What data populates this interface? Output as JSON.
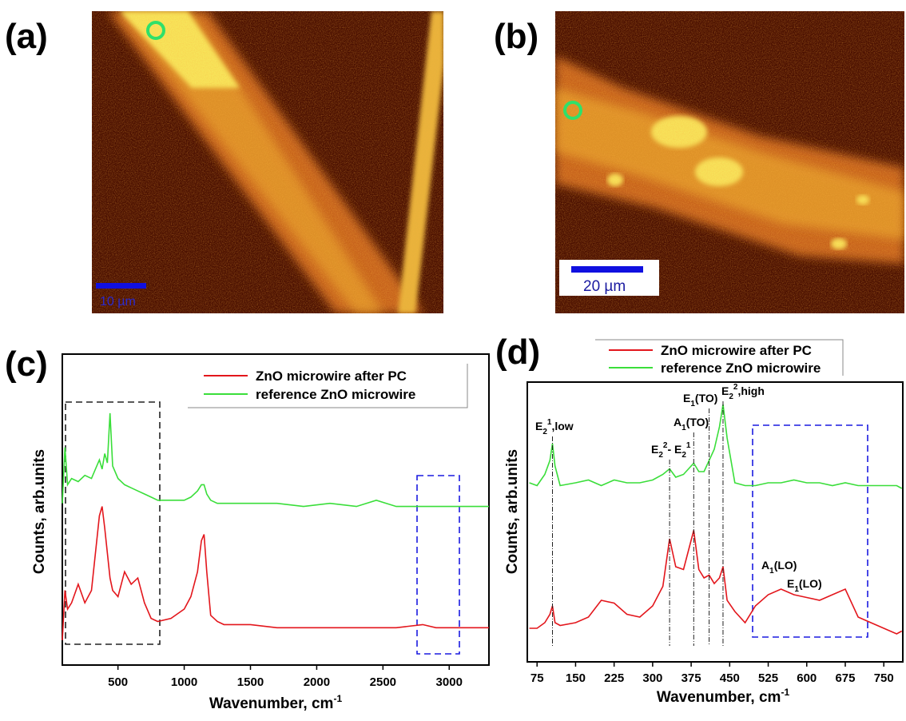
{
  "images": [
    {
      "label": "(a)",
      "scale_bar": "10 µm"
    },
    {
      "label": "(b)",
      "scale_bar": "20 µm"
    }
  ],
  "chart_data": [
    {
      "type": "line",
      "panel_label": "(c)",
      "x_label": {
        "text": "Wavenumber, cm",
        "sup": "-1"
      },
      "y_label": "Counts, arb.units",
      "x": [
        80,
        100,
        120,
        150,
        200,
        250,
        300,
        340,
        360,
        380,
        400,
        420,
        440,
        460,
        500,
        550,
        600,
        650,
        700,
        750,
        800,
        900,
        1000,
        1050,
        1100,
        1130,
        1150,
        1170,
        1200,
        1250,
        1300,
        1500,
        1700,
        1900,
        2100,
        2300,
        2450,
        2600,
        2800,
        2900,
        3000,
        3100,
        3200,
        3300
      ],
      "series": [
        {
          "name": "ZnO microwire after PC",
          "color": "#e3161c",
          "values": [
            8,
            24,
            18,
            20,
            26,
            20,
            24,
            40,
            48,
            51,
            44,
            36,
            28,
            24,
            22,
            30,
            26,
            28,
            20,
            15,
            14,
            15,
            18,
            22,
            30,
            40,
            42,
            30,
            16,
            14,
            13,
            13,
            12,
            12,
            12,
            12,
            12,
            12,
            13,
            12,
            12,
            12,
            12,
            12
          ]
        },
        {
          "name": "reference ZnO microwire",
          "color": "#3ade3a",
          "values": [
            52,
            70,
            58,
            60,
            59,
            61,
            60,
            64,
            66,
            63,
            68,
            65,
            81,
            64,
            60,
            58,
            57,
            56,
            55,
            54,
            53,
            53,
            53,
            54,
            56,
            58,
            58,
            55,
            53,
            52,
            52,
            52,
            52,
            51,
            52,
            51,
            53,
            51,
            51,
            51,
            51,
            51,
            51,
            51
          ]
        }
      ],
      "xlim": [
        80,
        3300
      ],
      "xticks": [
        500,
        1000,
        1500,
        2000,
        2500,
        3000
      ],
      "ylim": [
        0,
        100
      ]
    },
    {
      "type": "line",
      "panel_label": "(d)",
      "x_label": {
        "text": "Wavenumber, cm",
        "sup": "-1"
      },
      "y_label": "Counts, arb.units",
      "x": [
        60,
        75,
        90,
        100,
        105,
        110,
        120,
        150,
        175,
        200,
        225,
        250,
        275,
        300,
        320,
        333,
        345,
        360,
        380,
        390,
        400,
        410,
        420,
        430,
        437,
        445,
        460,
        480,
        500,
        525,
        550,
        575,
        600,
        625,
        650,
        675,
        700,
        725,
        750,
        775,
        785
      ],
      "series": [
        {
          "name": "ZnO microwire after PC",
          "color": "#e3161c",
          "values": [
            12,
            12,
            14,
            17,
            20,
            14,
            13,
            14,
            16,
            22,
            21,
            17,
            16,
            20,
            27,
            44,
            34,
            33,
            47,
            33,
            30,
            31,
            28,
            30,
            34,
            22,
            18,
            14,
            20,
            24,
            26,
            24,
            23,
            22,
            24,
            26,
            16,
            14,
            12,
            10,
            11
          ]
        },
        {
          "name": "reference ZnO microwire",
          "color": "#3ade3a",
          "values": [
            64,
            63,
            67,
            72,
            78,
            70,
            63,
            64,
            65,
            63,
            65,
            64,
            64,
            65,
            67,
            69,
            66,
            67,
            71,
            68,
            68,
            72,
            76,
            84,
            92,
            80,
            64,
            63,
            63,
            64,
            64,
            65,
            64,
            64,
            63,
            64,
            63,
            63,
            63,
            63,
            62
          ]
        }
      ],
      "annotations": [
        {
          "x": 105,
          "parts": [
            "E",
            {
              "text": "2",
              "style": "sub"
            },
            {
              "text": "1",
              "style": "sup"
            },
            ",low"
          ]
        },
        {
          "x": 333,
          "parts": [
            "E",
            {
              "text": "2",
              "style": "sub"
            },
            {
              "text": "2",
              "style": "sup"
            },
            "- E",
            {
              "text": "2",
              "style": "sub"
            },
            {
              "text": "1",
              "style": "sup"
            }
          ]
        },
        {
          "x": 380,
          "parts": [
            "A",
            {
              "text": "1",
              "style": "sub"
            },
            "(TO)"
          ]
        },
        {
          "x": 410,
          "parts": [
            "E",
            {
              "text": "1",
              "style": "sub"
            },
            "(TO)"
          ]
        },
        {
          "x": 437,
          "parts": [
            "E",
            {
              "text": "2",
              "style": "sub"
            },
            {
              "text": "2",
              "style": "sup"
            },
            ",high"
          ]
        },
        {
          "parts": [
            "A",
            {
              "text": "1",
              "style": "sub"
            },
            "(LO)"
          ]
        },
        {
          "parts": [
            "E",
            {
              "text": "1",
              "style": "sub"
            },
            "(LO)"
          ]
        }
      ],
      "xlim": [
        56,
        787
      ],
      "xticks": [
        75,
        150,
        225,
        300,
        375,
        450,
        525,
        600,
        675,
        750
      ],
      "ylim": [
        0,
        100
      ]
    }
  ]
}
